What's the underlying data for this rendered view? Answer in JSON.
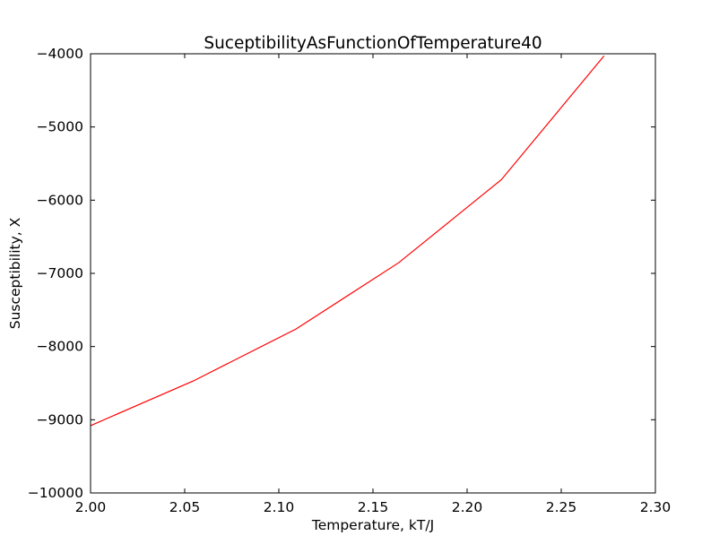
{
  "chart_data": {
    "type": "line",
    "title": "SuceptibilityAsFunctionOfTemperature40",
    "xlabel": "Temperature, kT/J",
    "ylabel": "Susceptibility, X",
    "xlim": [
      2.0,
      2.3
    ],
    "ylim": [
      -10000,
      -4000
    ],
    "xticks": [
      2.0,
      2.05,
      2.1,
      2.15,
      2.2,
      2.25,
      2.3
    ],
    "xtick_labels": [
      "2.00",
      "2.05",
      "2.10",
      "2.15",
      "2.20",
      "2.25",
      "2.30"
    ],
    "yticks": [
      -4000,
      -5000,
      -6000,
      -7000,
      -8000,
      -9000,
      -10000
    ],
    "ytick_labels": [
      "−4000",
      "−5000",
      "−6000",
      "−7000",
      "−8000",
      "−9000",
      "−10000"
    ],
    "grid": false,
    "series": [
      {
        "color": "#ff0000",
        "x": [
          2.0,
          2.0545,
          2.1091,
          2.1636,
          2.2182,
          2.2727
        ],
        "y": [
          -9080,
          -8470,
          -7760,
          -6855,
          -5720,
          -4030
        ]
      }
    ]
  }
}
